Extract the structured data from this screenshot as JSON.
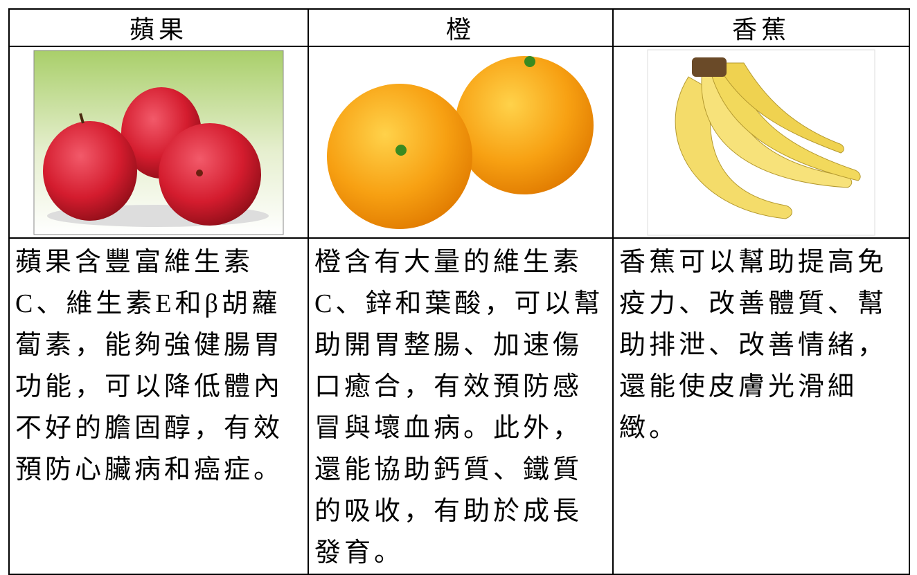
{
  "table": {
    "headers": [
      "蘋果",
      "橙",
      "香蕉"
    ],
    "descriptions": [
      [
        "蘋果含豐富維生素",
        "C、維生素E和β胡蘿",
        "蔔素，能夠強健腸胃",
        "功能，可以降低體內",
        "不好的膽固醇，有效",
        "預防心臟病和癌症。"
      ],
      [
        "橙含有大量的維生素",
        "C、鋅和葉酸，可以幫",
        "助開胃整腸、加速傷",
        "口癒合，有效預防感",
        "冒與壞血病。此外，",
        "還能協助鈣質、鐵質",
        "的吸收，有助於成長",
        "發育。"
      ],
      [
        "香蕉可以幫助提高免",
        "疫力、改善體質、幫",
        "助排泄、改善情緒，",
        "還能使皮膚光滑細",
        "緻。"
      ]
    ]
  }
}
